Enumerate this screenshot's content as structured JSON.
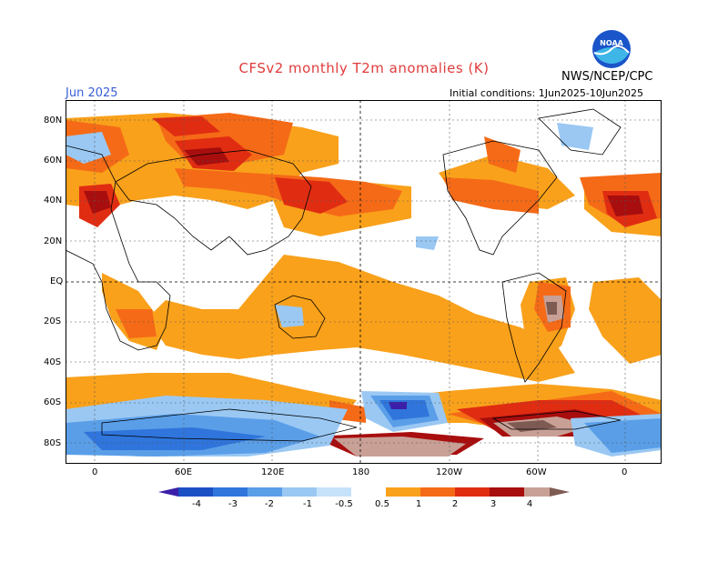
{
  "header": {
    "title": "CFSv2 monthly T2m anomalies (K)",
    "month": "Jun 2025",
    "initial_conditions": "Initial conditions: 1Jun2025-10Jun2025",
    "org": "NWS/NCEP/CPC",
    "logo_text": "NOAA"
  },
  "axes": {
    "lat_labels": [
      "80N",
      "60N",
      "40N",
      "20N",
      "EQ",
      "20S",
      "40S",
      "60S",
      "80S"
    ],
    "lon_labels": [
      "0",
      "60E",
      "120E",
      "180",
      "120W",
      "60W",
      "0"
    ]
  },
  "legend": {
    "labels": [
      "-4",
      "-3",
      "-2",
      "-1",
      "-0.5",
      "0.5",
      "1",
      "2",
      "3",
      "4"
    ],
    "colors": [
      "#3b1fa8",
      "#1d4fc4",
      "#2f75dc",
      "#5a9ee8",
      "#9ac8f3",
      "#ffffff",
      "#f9a11b",
      "#f56a17",
      "#e02d12",
      "#a80e0e",
      "#c9a096",
      "#7d5a52"
    ]
  },
  "colors": {
    "warm1": "#f9a11b",
    "warm2": "#f56a17",
    "warm3": "#e02d12",
    "warm4": "#a80e0e",
    "warm5": "#c9a096",
    "warm6": "#7d5a52",
    "cool1": "#9ac8f3",
    "cool2": "#5a9ee8",
    "cool3": "#2f75dc",
    "cool4": "#1d4fc4",
    "cool5": "#3b1fa8"
  }
}
